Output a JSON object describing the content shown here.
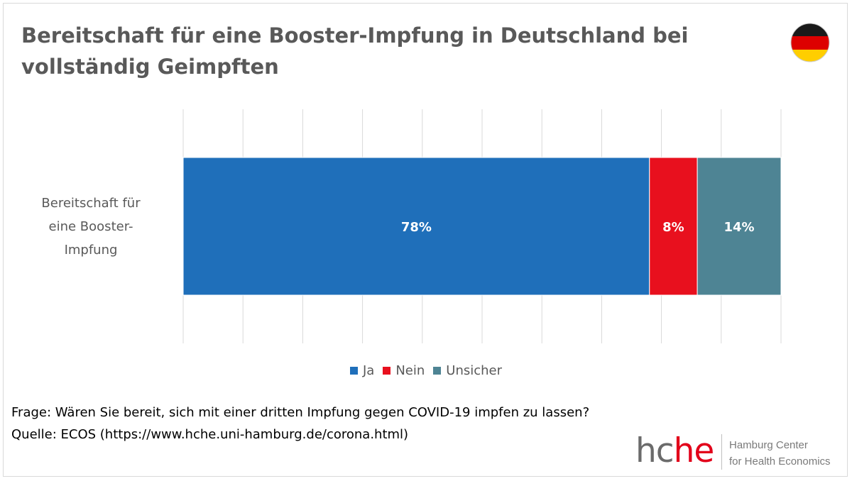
{
  "title": "Bereitschaft für eine Booster-Impfung in Deutschland bei vollständig Geimpften",
  "flag_icon": "germany-flag-icon",
  "chart_data": {
    "type": "bar",
    "orientation": "horizontal",
    "stacked": true,
    "categories": [
      "Bereitschaft für\neine Booster-\nImpfung"
    ],
    "series": [
      {
        "name": "Ja",
        "values": [
          78
        ],
        "label": "78%",
        "color": "#1f6fba"
      },
      {
        "name": "Nein",
        "values": [
          8
        ],
        "label": "8%",
        "color": "#e8101e"
      },
      {
        "name": "Unsicher",
        "values": [
          14
        ],
        "label": "14%",
        "color": "#4e8494"
      }
    ],
    "xlim": [
      0,
      100
    ],
    "grid": true,
    "legend": "bottom"
  },
  "footer": {
    "question": "Frage: Wären Sie bereit, sich mit einer dritten Impfung gegen COVID-19 impfen zu lassen?",
    "source": "Quelle: ECOS (https://www.hche.uni-hamburg.de/corona.html)"
  },
  "logo": {
    "mark_part1": "hc",
    "mark_part2": "he",
    "line1": "Hamburg Center",
    "line2": "for Health Economics"
  }
}
